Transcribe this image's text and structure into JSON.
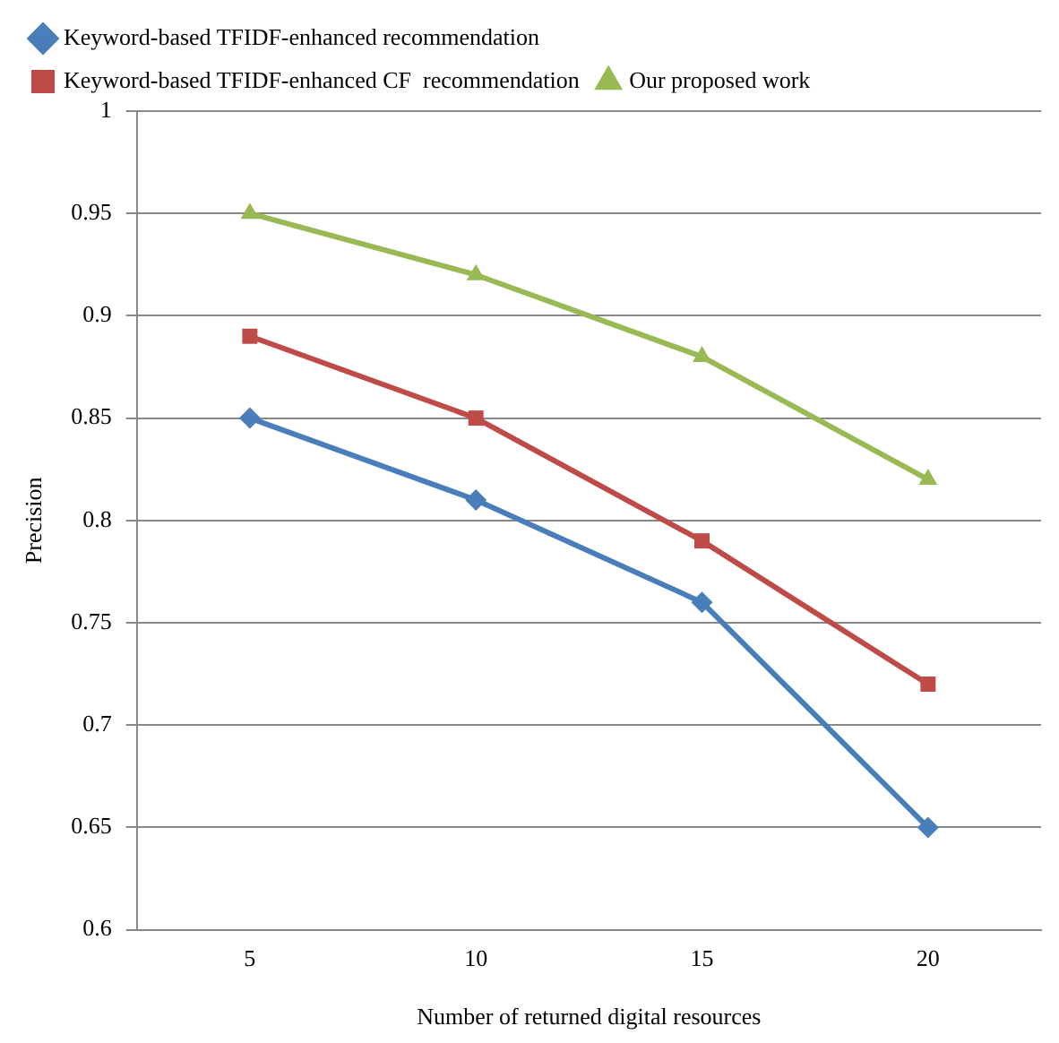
{
  "chart_data": {
    "type": "line",
    "xlabel": "Number of returned digital resources",
    "ylabel": "Precision",
    "categories": [
      "5",
      "10",
      "15",
      "20"
    ],
    "series": [
      {
        "name": "Keyword-based TFIDF-enhanced recommendation",
        "color": "#4a7ebb",
        "marker": "diamond",
        "values": [
          0.85,
          0.81,
          0.76,
          0.65
        ]
      },
      {
        "name": "Keyword-based TFIDF-enhanced CF  recommendation",
        "color": "#be4b48",
        "marker": "square",
        "values": [
          0.89,
          0.85,
          0.79,
          0.72
        ]
      },
      {
        "name": "Our proposed work",
        "color": "#98b954",
        "marker": "triangle",
        "values": [
          0.95,
          0.92,
          0.88,
          0.82
        ]
      }
    ],
    "ylim": [
      0.6,
      1
    ],
    "yticks": [
      0.6,
      0.65,
      0.7,
      0.75,
      0.8,
      0.85,
      0.9,
      0.95,
      1
    ],
    "grid": "y",
    "legend": "top left",
    "line_style": "solid"
  }
}
